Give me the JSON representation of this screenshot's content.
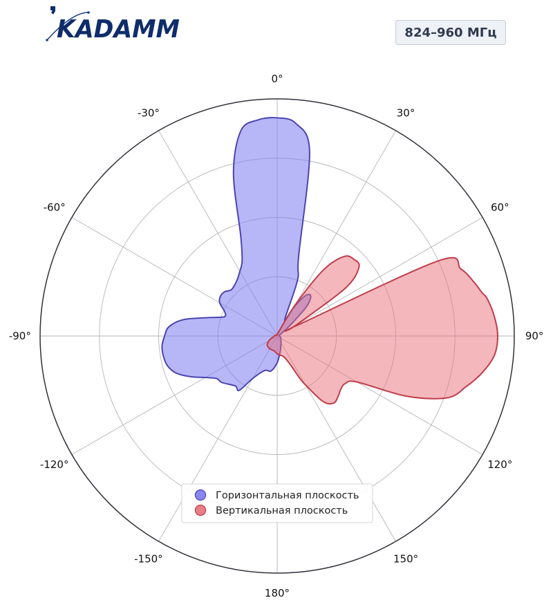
{
  "logo": {
    "text": "KADAMM",
    "color": "#0f2d6b",
    "accent": "#1e3d8a"
  },
  "badge": {
    "text": "824–960 МГц"
  },
  "chart_data": {
    "type": "polar",
    "title": "",
    "theta_ticks": [
      "0°",
      "30°",
      "60°",
      "90°",
      "120°",
      "150°",
      "180°",
      "-150°",
      "-120°",
      "-90°",
      "-60°",
      "-30°"
    ],
    "theta_tick_angles": [
      0,
      30,
      60,
      90,
      120,
      150,
      180,
      -150,
      -120,
      -90,
      -60,
      -30
    ],
    "theta_zero": "top",
    "theta_direction": "clockwise",
    "r_range": [
      0,
      4
    ],
    "r_gridlines": [
      1,
      2,
      3
    ],
    "grid": true,
    "legend_position": "bottom-center",
    "series": [
      {
        "name": "Горизонтальная плоскость",
        "color": "#7b7bf2",
        "edge": "#4a44b0",
        "theta": [
          0,
          5,
          10,
          15,
          20,
          25,
          30,
          35,
          40,
          45,
          50,
          55,
          60,
          65,
          70,
          75,
          80,
          85,
          90,
          100,
          110,
          120,
          130,
          140,
          150,
          160,
          170,
          180,
          190,
          200,
          210,
          215,
          220,
          230,
          235,
          240,
          245,
          250,
          255,
          260,
          265,
          270,
          275,
          280,
          285,
          290,
          295,
          300,
          305,
          310,
          315,
          320,
          325,
          330,
          335,
          340,
          345,
          350,
          355
        ],
        "r": [
          3.68,
          3.6,
          3.15,
          1.4,
          1.0,
          0.3,
          0.55,
          0.83,
          0.88,
          0.7,
          0.3,
          0.12,
          0.08,
          0.05,
          0.04,
          0.03,
          0.03,
          0.04,
          0.04,
          0.05,
          0.06,
          0.07,
          0.08,
          0.1,
          0.13,
          0.18,
          0.28,
          0.45,
          0.6,
          0.62,
          0.83,
          1.12,
          1.1,
          1.22,
          1.25,
          1.4,
          1.62,
          1.82,
          1.92,
          1.95,
          1.95,
          1.9,
          1.83,
          1.6,
          1.2,
          0.95,
          0.98,
          1.12,
          1.17,
          1.16,
          1.1,
          1.12,
          1.17,
          1.26,
          1.4,
          1.8,
          2.85,
          3.52,
          3.66
        ]
      },
      {
        "name": "Вертикальная плоскость",
        "color": "#e8707a",
        "edge": "#c03c48",
        "theta": [
          0,
          10,
          20,
          30,
          35,
          40,
          45,
          50,
          55,
          60,
          62,
          65,
          70,
          75,
          78,
          80,
          85,
          90,
          95,
          100,
          105,
          110,
          115,
          120,
          125,
          130,
          135,
          140,
          145,
          150,
          152,
          155,
          160,
          165,
          170,
          180,
          190,
          200,
          210,
          220,
          230,
          240,
          250,
          260,
          270,
          280,
          290,
          300,
          310,
          320,
          330,
          340,
          350
        ],
        "r": [
          0.02,
          0.04,
          0.08,
          0.6,
          1.36,
          1.75,
          1.83,
          1.8,
          1.4,
          0.38,
          0.4,
          3.0,
          3.3,
          3.45,
          3.53,
          3.6,
          3.68,
          3.72,
          3.68,
          3.52,
          3.3,
          3.05,
          2.4,
          1.55,
          1.4,
          1.4,
          1.45,
          1.48,
          1.35,
          0.95,
          0.8,
          0.55,
          0.4,
          0.35,
          0.33,
          0.3,
          0.26,
          0.25,
          0.25,
          0.24,
          0.22,
          0.16,
          0.1,
          0.06,
          0.05,
          0.04,
          0.03,
          0.02,
          0.02,
          0.02,
          0.02,
          0.02,
          0.02
        ]
      }
    ]
  }
}
